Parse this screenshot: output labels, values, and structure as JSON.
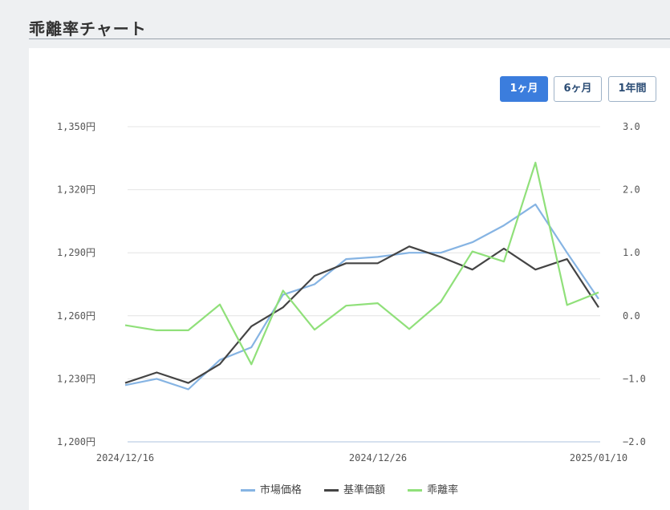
{
  "page": {
    "title": "乖離率チャート"
  },
  "range_buttons": [
    {
      "label": "1ヶ月",
      "active": true
    },
    {
      "label": "6ヶ月",
      "active": false
    },
    {
      "label": "1年間",
      "active": false
    }
  ],
  "colors": {
    "market": "#86b4e3",
    "nav": "#444444",
    "deviation": "#90e07a",
    "active_button": "#3b7ddd"
  },
  "chart_data": {
    "type": "line",
    "x_ticks": [
      "2024/12/16",
      "2024/12/26",
      "2025/01/10"
    ],
    "y_left": {
      "range": [
        1200,
        1350
      ],
      "ticks": [
        "1,200円",
        "1,230円",
        "1,260円",
        "1,290円",
        "1,320円",
        "1,350円"
      ]
    },
    "y_right": {
      "range": [
        -2.0,
        3.0
      ],
      "ticks": [
        "−2.0",
        "−1.0",
        "0.0",
        "1.0",
        "2.0",
        "3.0"
      ]
    },
    "grid": true,
    "legend_position": "bottom",
    "series": [
      {
        "name": "市場価格",
        "axis": "left",
        "values": [
          1227,
          1230,
          1225,
          1239,
          1245,
          1270,
          1275,
          1287,
          1288,
          1290,
          1290,
          1295,
          1303,
          1313,
          1290,
          1268
        ]
      },
      {
        "name": "基準価額",
        "axis": "left",
        "values": [
          1228,
          1233,
          1228,
          1237,
          1255,
          1264,
          1279,
          1285,
          1285,
          1293,
          1288,
          1282,
          1292,
          1282,
          1287,
          1264
        ]
      },
      {
        "name": "乖離率",
        "axis": "right",
        "values": [
          -0.15,
          -0.23,
          -0.23,
          0.18,
          -0.77,
          0.4,
          -0.22,
          0.16,
          0.2,
          -0.21,
          0.22,
          1.02,
          0.86,
          2.43,
          0.17,
          0.37
        ]
      }
    ]
  }
}
